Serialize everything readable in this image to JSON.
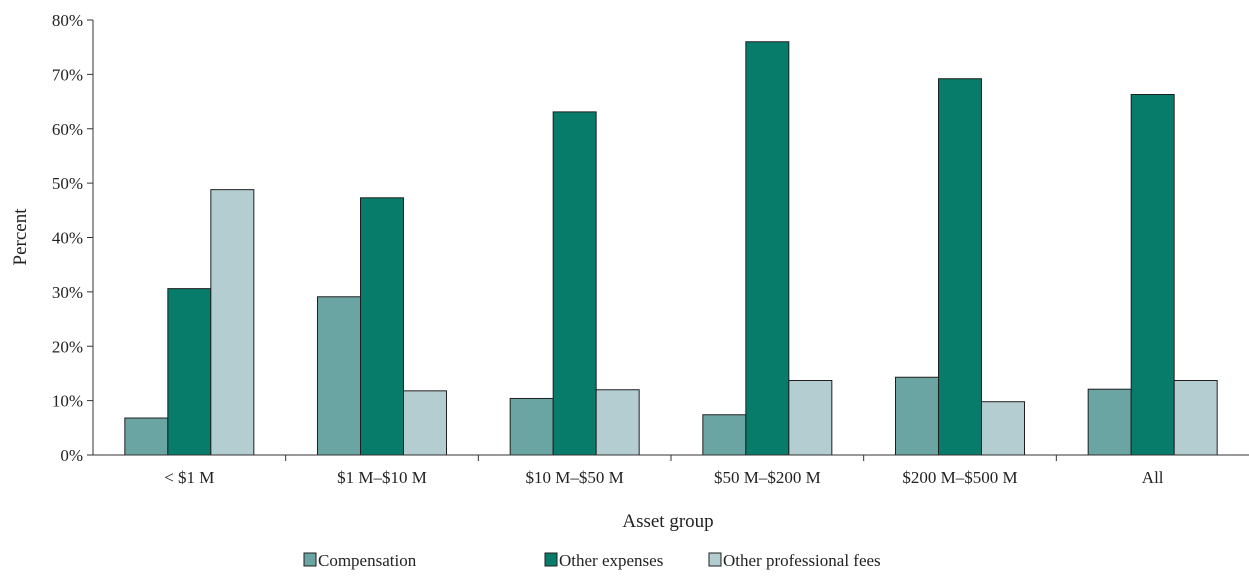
{
  "chart_data": {
    "type": "bar",
    "xlabel": "Asset group",
    "ylabel": "Percent",
    "ylim": [
      0,
      80
    ],
    "ytick_step": 10,
    "ytick_suffix": "%",
    "categories": [
      "< $1 M",
      "$1 M–$10 M",
      "$10 M–$50 M",
      "$50 M–$200 M",
      "$200 M–$500 M",
      "All"
    ],
    "series": [
      {
        "name": "Compensation",
        "color": "#6aa5a3",
        "values": [
          6.8,
          29.1,
          10.4,
          7.4,
          14.3,
          12.1
        ]
      },
      {
        "name": "Other expenses",
        "color": "#077c6a",
        "values": [
          30.6,
          47.3,
          63.1,
          76.0,
          69.2,
          66.3
        ]
      },
      {
        "name": "Other professional fees",
        "color": "#b4cdd1",
        "values": [
          48.8,
          11.8,
          12.0,
          13.7,
          9.8,
          13.7
        ]
      }
    ],
    "legend_position": "bottom",
    "grid": false
  }
}
